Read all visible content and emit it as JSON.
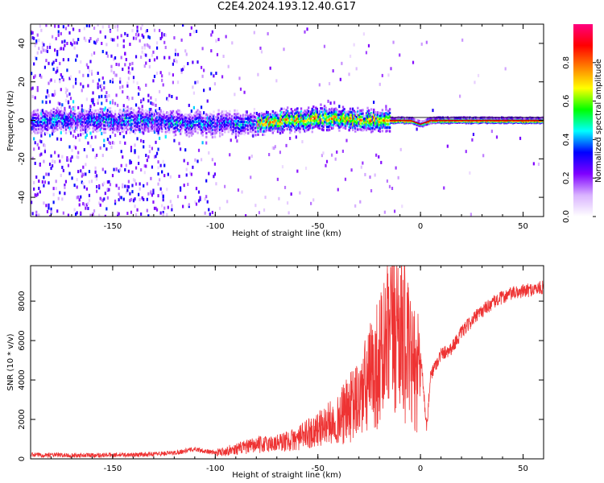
{
  "title": "C2E4.2024.193.12.40.G17",
  "chart_data": [
    {
      "type": "heatmap",
      "xlabel": "Height of straight line (km)",
      "ylabel": "Frequency (Hz)",
      "xlim": [
        -190,
        60
      ],
      "ylim": [
        -50,
        50
      ],
      "xticks": [
        -150,
        -100,
        -50,
        0,
        50
      ],
      "yticks": [
        -40,
        -20,
        0,
        20,
        40
      ],
      "colorbar": {
        "label": "Normalized spectral amplitude",
        "range": [
          0,
          1
        ],
        "ticks": [
          0.0,
          0.2,
          0.4,
          0.6,
          0.8
        ],
        "colors": [
          "#ffffff",
          "#d9b3ff",
          "#7f00ff",
          "#0000ff",
          "#00ffff",
          "#00ff00",
          "#ffff00",
          "#ff7f00",
          "#ff0000",
          "#ff007f"
        ]
      },
      "ridge": {
        "note": "",
        "x": [
          -190,
          -150,
          -120,
          -100,
          -80,
          -60,
          -50,
          -40,
          -30,
          -15,
          -5,
          0,
          5,
          20,
          40,
          60
        ],
        "freq": [
          0,
          0,
          -1,
          -2,
          -1,
          0,
          1,
          1,
          0,
          0,
          0,
          -2,
          0,
          0,
          0,
          0
        ]
      }
    },
    {
      "type": "line",
      "xlabel": "Height of straight line (km)",
      "ylabel": "SNR (10 * v/v)",
      "xlim": [
        -190,
        60
      ],
      "ylim": [
        0,
        9800
      ],
      "xticks": [
        -150,
        -100,
        -50,
        0,
        50
      ],
      "yticks": [
        0,
        2000,
        4000,
        6000,
        8000
      ],
      "color": "#ee3333",
      "series": [
        {
          "name": "",
          "x": [
            -190,
            -180,
            -170,
            -160,
            -150,
            -140,
            -130,
            -120,
            -110,
            -100,
            -90,
            -80,
            -70,
            -60,
            -55,
            -50,
            -45,
            -40,
            -35,
            -30,
            -25,
            -20,
            -15,
            -13,
            -10,
            -5,
            -2,
            0,
            3,
            5,
            10,
            15,
            20,
            25,
            30,
            35,
            40,
            45,
            50,
            55,
            60
          ],
          "y": [
            200,
            200,
            180,
            190,
            200,
            200,
            250,
            300,
            500,
            300,
            500,
            700,
            800,
            1000,
            1300,
            1500,
            1800,
            2000,
            2500,
            3000,
            4000,
            5000,
            6000,
            6500,
            7000,
            4800,
            4300,
            5500,
            1500,
            4300,
            5300,
            5600,
            6400,
            7000,
            7500,
            7900,
            8200,
            8400,
            8500,
            8600,
            8700
          ]
        }
      ]
    }
  ]
}
